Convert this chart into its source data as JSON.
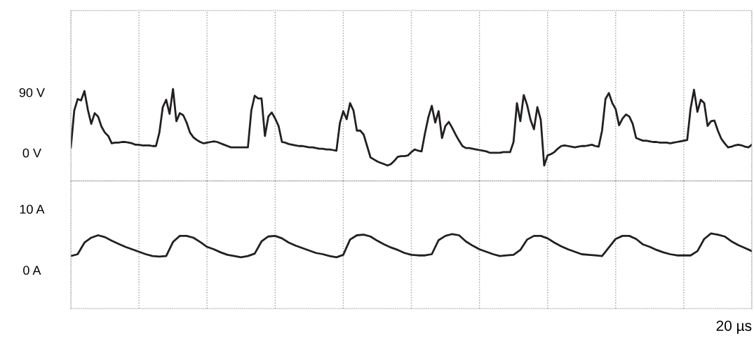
{
  "chart_data": [
    {
      "type": "line",
      "categories": [
        null,
        null,
        null,
        null,
        null,
        null,
        null,
        null,
        null,
        null,
        null,
        null,
        null,
        null,
        null,
        null,
        null,
        null,
        null,
        null,
        null,
        null,
        null,
        null,
        null,
        null,
        null,
        null,
        null,
        null,
        null,
        null,
        null,
        null,
        null,
        null,
        null,
        null,
        null,
        null,
        null,
        null,
        null,
        null,
        null,
        null,
        null,
        null,
        null,
        null,
        null,
        null,
        null,
        null,
        null,
        null,
        null,
        null,
        null,
        null,
        null,
        null,
        null,
        null,
        null,
        null,
        null,
        null,
        null,
        null,
        null,
        null,
        null,
        null,
        null,
        null,
        null,
        null,
        null,
        null,
        null,
        null,
        null,
        null,
        null,
        null,
        null,
        null,
        null,
        null,
        null,
        null,
        null,
        null,
        null,
        null,
        null,
        null,
        null,
        null,
        null,
        null,
        null,
        null,
        null,
        null,
        null,
        null,
        null,
        null,
        null,
        null,
        null,
        null,
        null,
        null,
        null,
        null,
        null,
        null,
        null,
        null,
        null,
        null,
        null,
        null,
        null,
        null,
        null,
        null,
        null,
        null,
        null,
        null,
        null,
        null,
        null,
        null,
        null,
        null,
        null,
        null,
        null,
        null,
        null,
        null,
        null,
        null,
        null,
        null,
        null,
        null,
        null,
        null,
        null,
        null,
        null,
        null,
        null,
        null,
        null,
        null,
        null,
        null,
        null,
        null,
        null,
        null,
        null,
        null,
        null,
        null,
        null,
        null,
        null,
        null,
        null,
        null,
        null,
        null,
        null,
        null,
        null,
        null,
        null,
        null,
        null,
        null,
        null,
        null,
        null,
        null,
        null,
        null,
        null,
        null,
        null,
        null,
        null,
        null,
        null
      ],
      "ylim": [
        -42,
        212
      ],
      "yticks": [
        {
          "value": 0,
          "label": "0 V"
        },
        {
          "value": 90,
          "label": "90 V"
        }
      ],
      "grid": "x",
      "tick_labels": "y",
      "marker": "none",
      "line_style": "solid",
      "series": [
        {
          "color": "#231f20",
          "values": [
            8,
            63,
            80,
            78,
            92,
            64,
            43,
            59,
            54,
            39,
            30,
            25,
            14,
            15,
            15,
            16,
            16,
            15,
            14,
            12,
            12,
            11,
            11,
            11,
            10,
            10,
            30,
            68,
            79,
            58,
            95,
            47,
            59,
            56,
            45,
            30,
            23,
            19,
            16,
            14,
            15,
            16,
            17,
            16,
            14,
            12,
            10,
            8,
            8,
            8,
            8,
            8,
            8,
            63,
            85,
            81,
            81,
            25,
            54,
            60,
            51,
            40,
            16,
            15,
            13,
            12,
            11,
            10,
            10,
            9,
            8,
            8,
            7,
            6,
            6,
            5,
            5,
            4,
            3,
            44,
            62,
            50,
            74,
            63,
            33,
            33,
            27,
            10,
            -7,
            -10,
            -13,
            -15,
            -17,
            -19,
            -17,
            -12,
            -6,
            -5,
            -5,
            -4,
            1,
            5,
            3,
            2,
            29,
            53,
            70,
            45,
            62,
            22,
            40,
            46,
            37,
            27,
            18,
            10,
            7,
            7,
            6,
            5,
            4,
            3,
            2,
            0,
            0,
            0,
            0,
            1,
            1,
            1,
            16,
            74,
            47,
            86,
            71,
            49,
            35,
            68,
            49,
            -19,
            -4,
            -2,
            1,
            6,
            10,
            11,
            10,
            9,
            8,
            9,
            10,
            10,
            11,
            12,
            10,
            9,
            33,
            80,
            89,
            74,
            65,
            41,
            51,
            57,
            54,
            43,
            22,
            20,
            18,
            18,
            17,
            16,
            16,
            15,
            15,
            15,
            14,
            15,
            16,
            17,
            18,
            19,
            66,
            94,
            61,
            79,
            74,
            40,
            47,
            48,
            33,
            21,
            14,
            8,
            9,
            11,
            12,
            11,
            9,
            8,
            12
          ]
        }
      ]
    },
    {
      "type": "line",
      "categories": [
        null,
        null,
        null,
        null,
        null,
        null,
        null,
        null,
        null,
        null,
        null,
        null,
        null,
        null,
        null,
        null,
        null,
        null,
        null,
        null,
        null,
        null,
        null,
        null,
        null,
        null,
        null,
        null,
        null,
        null,
        null,
        null,
        null,
        null,
        null,
        null,
        null,
        null,
        null,
        null,
        null,
        null,
        null,
        null,
        null,
        null,
        null,
        null,
        null,
        null,
        null,
        null,
        null,
        null,
        null,
        null,
        null,
        null,
        null,
        null,
        null,
        null,
        null,
        null,
        null,
        null,
        null,
        null,
        null,
        null,
        null,
        null,
        null,
        null,
        null,
        null,
        null,
        null,
        null,
        null,
        null,
        null,
        null,
        null,
        null,
        null,
        null,
        null,
        null,
        null,
        null,
        null,
        null,
        null,
        null,
        null,
        null,
        null,
        null,
        null,
        null
      ],
      "ylim": [
        -6.3,
        14.6
      ],
      "yticks": [
        {
          "value": 0,
          "label": "0 A"
        },
        {
          "value": 10,
          "label": "10 A"
        }
      ],
      "xlabel": "20 µs",
      "grid": "x",
      "tick_labels": "y",
      "marker": "none",
      "line_style": "solid",
      "series": [
        {
          "color": "#231f20",
          "values": [
            2.3,
            2.6,
            4.5,
            5.3,
            5.7,
            5.4,
            4.8,
            4.3,
            3.8,
            3.4,
            3.0,
            2.6,
            2.3,
            2.2,
            2.3,
            4.6,
            5.6,
            5.6,
            5.3,
            4.6,
            3.8,
            3.4,
            2.9,
            2.5,
            2.3,
            2.1,
            2.3,
            2.7,
            4.7,
            5.5,
            5.6,
            5.2,
            4.5,
            4.0,
            3.6,
            3.2,
            2.8,
            2.6,
            2.3,
            2.1,
            2.5,
            5.0,
            5.7,
            5.8,
            5.5,
            4.8,
            4.2,
            3.7,
            3.3,
            2.8,
            2.5,
            2.4,
            2.4,
            2.6,
            4.9,
            5.6,
            5.9,
            5.7,
            4.7,
            4.0,
            3.4,
            3.0,
            2.6,
            2.3,
            2.4,
            2.5,
            3.3,
            5.0,
            5.6,
            5.6,
            5.2,
            4.5,
            3.9,
            3.4,
            3.0,
            2.6,
            2.5,
            2.4,
            2.3,
            3.7,
            5.1,
            5.6,
            5.6,
            5.1,
            4.2,
            3.8,
            3.3,
            2.9,
            2.6,
            2.4,
            2.4,
            2.4,
            3.1,
            5.1,
            6.0,
            5.8,
            5.5,
            4.7,
            4.1,
            3.6,
            3.1
          ]
        }
      ]
    }
  ]
}
